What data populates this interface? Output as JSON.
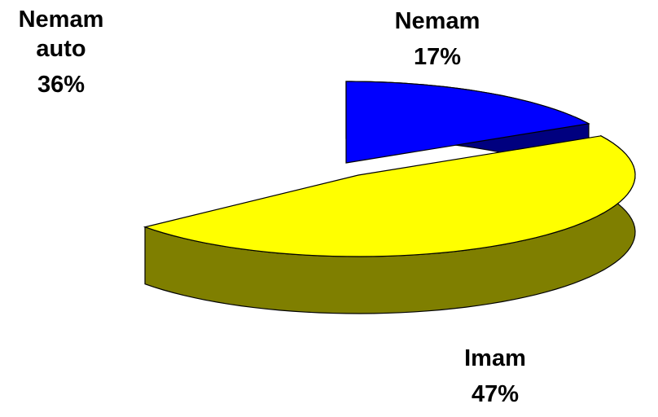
{
  "chart_data": {
    "type": "pie",
    "categories": [
      "Nemam",
      "Imam",
      "Nemam auto"
    ],
    "values": [
      17,
      47,
      36
    ],
    "value_labels": [
      "17%",
      "47%",
      "36%"
    ],
    "colors": [
      "#0000ff",
      "#ffff00",
      "#ffffff"
    ]
  }
}
